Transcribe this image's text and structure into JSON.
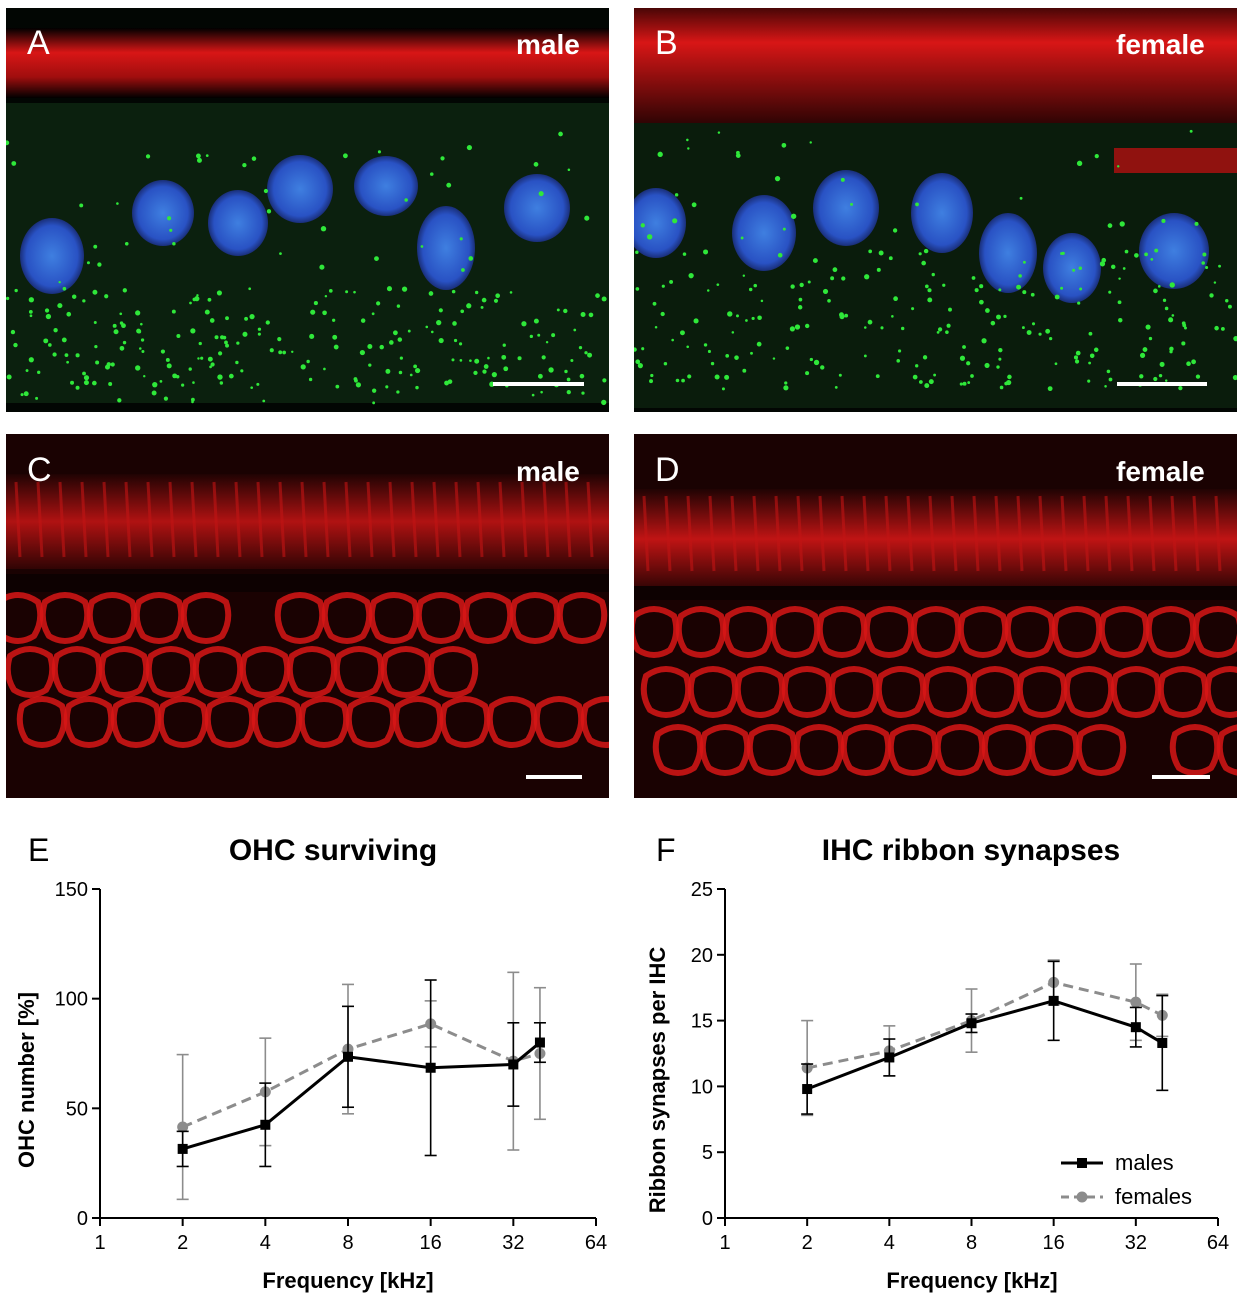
{
  "panels": {
    "A": {
      "letter": "A",
      "tag": "male"
    },
    "B": {
      "letter": "B",
      "tag": "female"
    },
    "C": {
      "letter": "C",
      "tag": "male"
    },
    "D": {
      "letter": "D",
      "tag": "female"
    },
    "E": {
      "letter": "E"
    },
    "F": {
      "letter": "F"
    }
  },
  "colors": {
    "male_series": "#000000",
    "female_series": "#8c8c8c",
    "phalloidin_red": "#d81616",
    "nucleus_blue": "#2d5fd0",
    "ribbon_green": "#2fe83a",
    "background": "#000000"
  },
  "chart_data": [
    {
      "type": "line",
      "title": "OHC surviving",
      "xlabel": "Frequency [kHz]",
      "ylabel": "OHC number [%]",
      "xscale": "log2",
      "xlim": [
        1,
        64
      ],
      "ylim": [
        0,
        150
      ],
      "xticks": [
        "1",
        "2",
        "4",
        "8",
        "16",
        "32",
        "64"
      ],
      "yticks": [
        "0",
        "50",
        "100",
        "150"
      ],
      "grid": false,
      "legend": "none",
      "series": [
        {
          "key": "males",
          "color": "#000000",
          "dashed": false,
          "marker": "square",
          "x": [
            2,
            4,
            8,
            16,
            32,
            40
          ],
          "y": [
            31.5,
            42.5,
            73.5,
            68.5,
            70,
            80
          ],
          "err": [
            8,
            19,
            23,
            40,
            19,
            9
          ]
        },
        {
          "key": "females",
          "color": "#8c8c8c",
          "dashed": true,
          "marker": "circle",
          "x": [
            2,
            4,
            8,
            16,
            32,
            40
          ],
          "y": [
            41.5,
            57.5,
            77,
            88.5,
            71.5,
            75
          ],
          "err": [
            33,
            24.5,
            29.5,
            10.5,
            40.5,
            30
          ]
        }
      ]
    },
    {
      "type": "line",
      "title": "IHC ribbon synapses",
      "xlabel": "Frequency [kHz]",
      "ylabel": "Ribbon synapses per IHC",
      "xscale": "log2",
      "xlim": [
        1,
        64
      ],
      "ylim": [
        0,
        25
      ],
      "xticks": [
        "1",
        "2",
        "4",
        "8",
        "16",
        "32",
        "64"
      ],
      "yticks": [
        "0",
        "5",
        "10",
        "15",
        "20",
        "25"
      ],
      "grid": false,
      "legend": "bottom-right",
      "series": [
        {
          "name": "males",
          "color": "#000000",
          "dashed": false,
          "marker": "square",
          "x": [
            2,
            4,
            8,
            16,
            32,
            40
          ],
          "y": [
            9.8,
            12.2,
            14.8,
            16.5,
            14.5,
            13.3
          ],
          "err": [
            1.9,
            1.4,
            0.7,
            3.0,
            1.5,
            3.6
          ]
        },
        {
          "name": "females",
          "color": "#8c8c8c",
          "dashed": true,
          "marker": "circle",
          "x": [
            2,
            4,
            8,
            16,
            32,
            40
          ],
          "y": [
            11.4,
            12.7,
            15.0,
            17.9,
            16.4,
            15.4
          ],
          "err": [
            3.6,
            1.9,
            2.4,
            1.7,
            2.9,
            1.6
          ]
        }
      ]
    }
  ]
}
